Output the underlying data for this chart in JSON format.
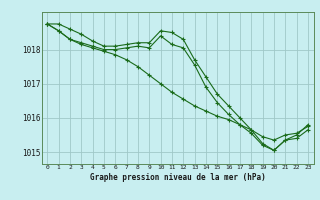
{
  "title": "Graphe pression niveau de la mer (hPa)",
  "bg_color": "#c8eef0",
  "grid_color": "#a0c8c8",
  "line_color": "#1a6b1a",
  "x": [
    0,
    1,
    2,
    3,
    4,
    5,
    6,
    7,
    8,
    9,
    10,
    11,
    12,
    13,
    14,
    15,
    16,
    17,
    18,
    19,
    20,
    21,
    22,
    23
  ],
  "line1": [
    1018.75,
    1018.75,
    1018.6,
    1018.45,
    1018.25,
    1018.1,
    1018.1,
    1018.15,
    1018.2,
    1018.2,
    1018.55,
    1018.5,
    1018.3,
    1017.7,
    1017.2,
    1016.7,
    1016.35,
    1016.0,
    1015.65,
    1015.25,
    1015.05,
    1015.35,
    1015.5,
    1015.8
  ],
  "line2": [
    1018.75,
    1018.55,
    1018.3,
    1018.2,
    1018.1,
    1018.0,
    1018.0,
    1018.05,
    1018.1,
    1018.05,
    1018.4,
    1018.15,
    1018.05,
    1017.55,
    1016.9,
    1016.45,
    1016.1,
    1015.8,
    1015.55,
    1015.2,
    1015.05,
    1015.35,
    1015.4,
    1015.65
  ],
  "line3": [
    1018.75,
    1018.55,
    1018.3,
    1018.15,
    1018.05,
    1017.95,
    1017.85,
    1017.7,
    1017.5,
    1017.25,
    1017.0,
    1016.75,
    1016.55,
    1016.35,
    1016.2,
    1016.05,
    1015.95,
    1015.8,
    1015.65,
    1015.45,
    1015.35,
    1015.5,
    1015.55,
    1015.75
  ],
  "ylim": [
    1014.65,
    1019.1
  ],
  "yticks": [
    1015,
    1016,
    1017,
    1018
  ],
  "xlim": [
    -0.5,
    23.5
  ],
  "xticks": [
    0,
    1,
    2,
    3,
    4,
    5,
    6,
    7,
    8,
    9,
    10,
    11,
    12,
    13,
    14,
    15,
    16,
    17,
    18,
    19,
    20,
    21,
    22,
    23
  ]
}
